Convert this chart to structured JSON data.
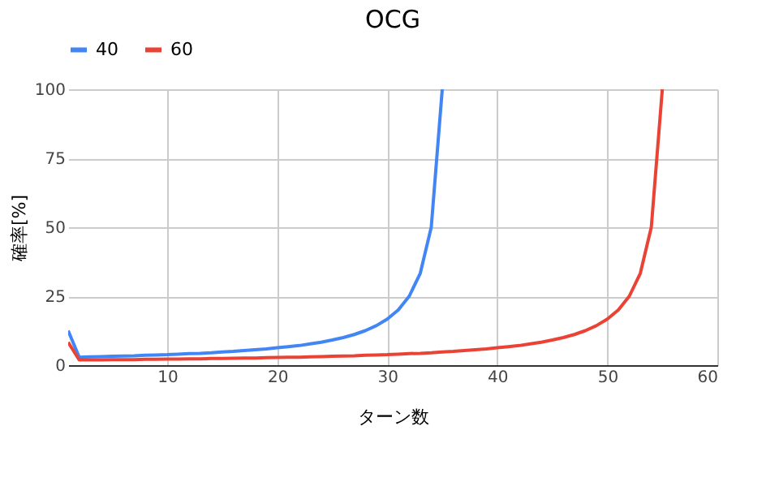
{
  "chart_data": {
    "type": "line",
    "title": "OCG",
    "xlabel": "ターン数",
    "ylabel": "確率[%]",
    "xlim": [
      1,
      60
    ],
    "xticks": [
      10,
      20,
      30,
      40,
      50,
      60
    ],
    "ylim": [
      0,
      100
    ],
    "yticks": [
      0,
      25,
      50,
      75,
      100
    ],
    "grid": true,
    "legend": "top",
    "marker": "none",
    "line_style": "solid",
    "series": [
      {
        "name": "40",
        "color": "#4285f4",
        "x": [
          1,
          2,
          3,
          4,
          5,
          6,
          7,
          8,
          9,
          10,
          11,
          12,
          13,
          14,
          15,
          16,
          17,
          18,
          19,
          20,
          21,
          22,
          23,
          24,
          25,
          26,
          27,
          28,
          29,
          30,
          31,
          32,
          33,
          34,
          35
        ],
        "values": [
          12.5,
          2.9,
          3.0,
          3.1,
          3.2,
          3.3,
          3.4,
          3.6,
          3.7,
          3.8,
          4.0,
          4.2,
          4.3,
          4.5,
          4.8,
          5.0,
          5.3,
          5.6,
          5.9,
          6.3,
          6.7,
          7.1,
          7.7,
          8.3,
          9.1,
          10.0,
          11.1,
          12.5,
          14.3,
          16.7,
          20,
          25,
          33.3,
          50,
          100
        ]
      },
      {
        "name": "60",
        "color": "#ea4335",
        "x": [
          1,
          2,
          3,
          4,
          5,
          6,
          7,
          8,
          9,
          10,
          11,
          12,
          13,
          14,
          15,
          16,
          17,
          18,
          19,
          20,
          21,
          22,
          23,
          24,
          25,
          26,
          27,
          28,
          29,
          30,
          31,
          32,
          33,
          34,
          35,
          36,
          37,
          38,
          39,
          40,
          41,
          42,
          43,
          44,
          45,
          46,
          47,
          48,
          49,
          50,
          51,
          52,
          53,
          54,
          55
        ],
        "values": [
          8.3,
          1.9,
          1.9,
          1.9,
          2.0,
          2.0,
          2.0,
          2.1,
          2.1,
          2.2,
          2.2,
          2.3,
          2.3,
          2.4,
          2.4,
          2.5,
          2.6,
          2.6,
          2.7,
          2.8,
          2.9,
          2.9,
          3.0,
          3.1,
          3.2,
          3.3,
          3.4,
          3.6,
          3.7,
          3.8,
          4.0,
          4.2,
          4.3,
          4.5,
          4.8,
          5.0,
          5.3,
          5.6,
          5.9,
          6.3,
          6.7,
          7.1,
          7.7,
          8.3,
          9.1,
          10.0,
          11.1,
          12.5,
          14.3,
          16.7,
          20,
          25,
          33.3,
          50,
          100
        ]
      }
    ]
  }
}
